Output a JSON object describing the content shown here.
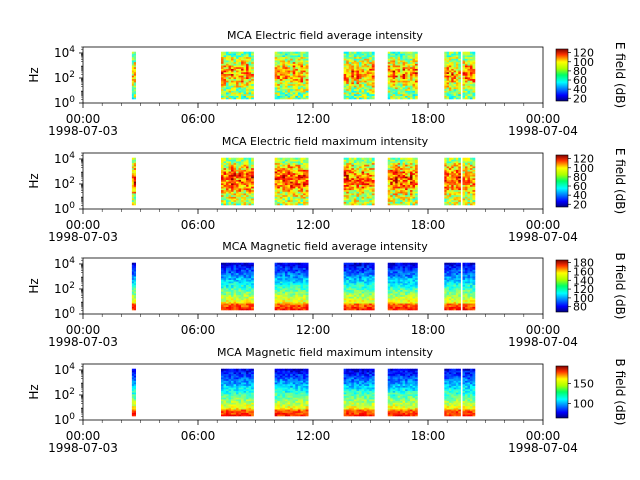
{
  "chart_data": [
    {
      "type": "heatmap",
      "title": "MCA  Electric field average intensity",
      "ylabel": "Hz",
      "colorbar_label": "E field (dB)",
      "colorbar_ticks": [
        "20",
        "40",
        "60",
        "80",
        "100",
        "120"
      ],
      "colorbar_range": [
        14,
        128
      ],
      "y_scale": "log",
      "y_ticks": [
        {
          "exp": "0"
        },
        {
          "exp": "2"
        },
        {
          "exp": "4"
        }
      ],
      "ylim": [
        1,
        30000
      ],
      "xlim": [
        0,
        24
      ],
      "x_ticks": [
        {
          "t": 0,
          "label": "00:00",
          "date": "1998-07-03"
        },
        {
          "t": 6,
          "label": "06:00",
          "date": ""
        },
        {
          "t": 12,
          "label": "12:00",
          "date": ""
        },
        {
          "t": 18,
          "label": "18:00",
          "date": ""
        },
        {
          "t": 24,
          "label": "00:00",
          "date": "1998-07-04"
        }
      ],
      "data_intervals_hours": [
        [
          2.55,
          2.75
        ],
        [
          7.2,
          8.9
        ],
        [
          10.0,
          11.75
        ],
        [
          13.6,
          15.2
        ],
        [
          15.9,
          17.45
        ],
        [
          18.85,
          19.7
        ],
        [
          19.8,
          20.45
        ]
      ]
    },
    {
      "type": "heatmap",
      "title": "MCA  Electric field maximum intensity",
      "ylabel": "Hz",
      "colorbar_label": "E field (dB)",
      "colorbar_ticks": [
        "20",
        "40",
        "60",
        "80",
        "100",
        "120"
      ],
      "colorbar_range": [
        14,
        128
      ],
      "y_scale": "log",
      "y_ticks": [
        {
          "exp": "0"
        },
        {
          "exp": "2"
        },
        {
          "exp": "4"
        }
      ],
      "ylim": [
        1,
        30000
      ],
      "xlim": [
        0,
        24
      ],
      "x_ticks": [
        {
          "t": 0,
          "label": "00:00",
          "date": "1998-07-03"
        },
        {
          "t": 6,
          "label": "06:00",
          "date": ""
        },
        {
          "t": 12,
          "label": "12:00",
          "date": ""
        },
        {
          "t": 18,
          "label": "18:00",
          "date": ""
        },
        {
          "t": 24,
          "label": "00:00",
          "date": "1998-07-04"
        }
      ],
      "data_intervals_hours": [
        [
          2.55,
          2.75
        ],
        [
          7.2,
          8.9
        ],
        [
          10.0,
          11.75
        ],
        [
          13.6,
          15.2
        ],
        [
          15.9,
          17.45
        ],
        [
          18.85,
          19.7
        ],
        [
          19.8,
          20.45
        ]
      ]
    },
    {
      "type": "heatmap",
      "title": "MCA  Magnetic field average intensity",
      "ylabel": "Hz",
      "colorbar_label": "B field (dB)",
      "colorbar_ticks": [
        "80",
        "100",
        "120",
        "140",
        "160",
        "180"
      ],
      "colorbar_range": [
        68,
        186
      ],
      "y_scale": "log",
      "y_ticks": [
        {
          "exp": "0"
        },
        {
          "exp": "2"
        },
        {
          "exp": "4"
        }
      ],
      "ylim": [
        1,
        30000
      ],
      "xlim": [
        0,
        24
      ],
      "x_ticks": [
        {
          "t": 0,
          "label": "00:00",
          "date": "1998-07-03"
        },
        {
          "t": 6,
          "label": "06:00",
          "date": ""
        },
        {
          "t": 12,
          "label": "12:00",
          "date": ""
        },
        {
          "t": 18,
          "label": "18:00",
          "date": ""
        },
        {
          "t": 24,
          "label": "00:00",
          "date": "1998-07-04"
        }
      ],
      "data_intervals_hours": [
        [
          2.55,
          2.75
        ],
        [
          7.2,
          8.9
        ],
        [
          10.0,
          11.75
        ],
        [
          13.6,
          15.2
        ],
        [
          15.9,
          17.45
        ],
        [
          18.85,
          19.7
        ],
        [
          19.8,
          20.45
        ]
      ]
    },
    {
      "type": "heatmap",
      "title": "MCA  Magnetic field maximum intensity",
      "ylabel": "Hz",
      "colorbar_label": "B field (dB)",
      "colorbar_ticks": [
        "100",
        "150"
      ],
      "colorbar_range": [
        64,
        194
      ],
      "y_scale": "log",
      "y_ticks": [
        {
          "exp": "0"
        },
        {
          "exp": "2"
        },
        {
          "exp": "4"
        }
      ],
      "ylim": [
        1,
        30000
      ],
      "xlim": [
        0,
        24
      ],
      "x_ticks": [
        {
          "t": 0,
          "label": "00:00",
          "date": "1998-07-03"
        },
        {
          "t": 6,
          "label": "06:00",
          "date": ""
        },
        {
          "t": 12,
          "label": "12:00",
          "date": ""
        },
        {
          "t": 18,
          "label": "18:00",
          "date": ""
        },
        {
          "t": 24,
          "label": "00:00",
          "date": "1998-07-04"
        }
      ],
      "data_intervals_hours": [
        [
          2.55,
          2.75
        ],
        [
          7.2,
          8.9
        ],
        [
          10.0,
          11.75
        ],
        [
          13.6,
          15.2
        ],
        [
          15.9,
          17.45
        ],
        [
          18.85,
          19.7
        ],
        [
          19.8,
          20.45
        ]
      ]
    }
  ]
}
